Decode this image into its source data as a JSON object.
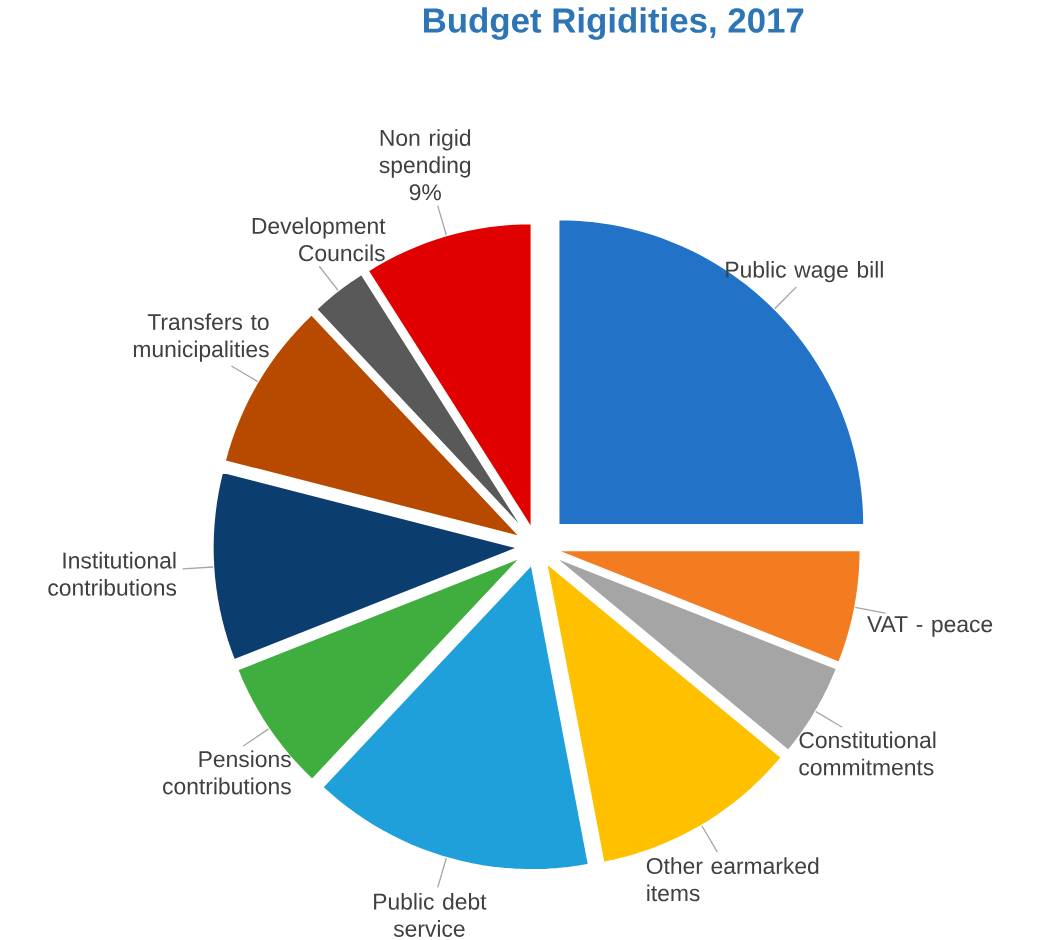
{
  "chart_data": {
    "type": "pie",
    "title": "Budget Rigidities,  2017",
    "categories": [
      "Public wage bill",
      "VAT - peace",
      "Constitutional commitments",
      "Other earmarked items",
      "Public debt service",
      "Pensions contributions",
      "Institutional contributions",
      "Transfers to municipalities",
      "Development Councils",
      "Non rigid spending"
    ],
    "values": [
      25,
      6,
      5,
      11,
      15,
      7,
      10,
      9,
      3,
      9
    ],
    "value_labels": [
      null,
      null,
      null,
      null,
      null,
      null,
      null,
      null,
      null,
      "9%"
    ],
    "colors": [
      "#2272c8",
      "#f47c20",
      "#a5a5a5",
      "#ffc000",
      "#1fa0db",
      "#3fae3f",
      "#0b3d6e",
      "#b84a00",
      "#595959",
      "#e00000"
    ]
  }
}
